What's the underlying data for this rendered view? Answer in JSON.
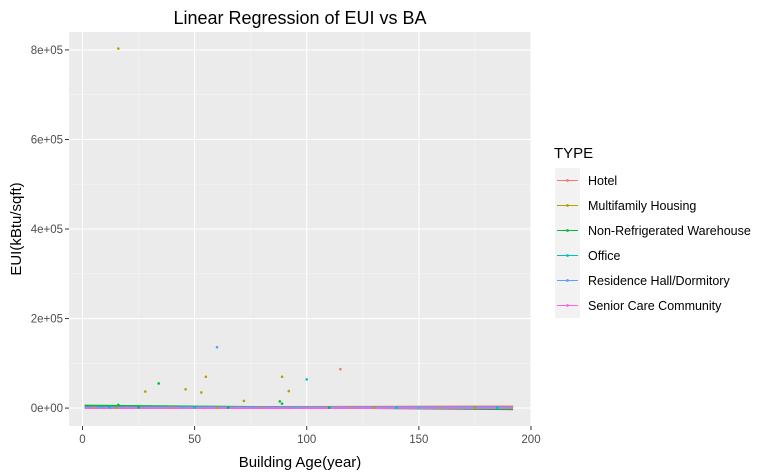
{
  "chart_data": {
    "type": "scatter",
    "title": "Linear Regression of EUI vs BA",
    "xlabel": "Building Age(year)",
    "ylabel": "EUI(kBtu/sqft)",
    "xlim": [
      -6,
      200
    ],
    "ylim": [
      -40000,
      840000
    ],
    "x_ticks": [
      0,
      50,
      100,
      150,
      200
    ],
    "x_tick_labels": [
      "0",
      "50",
      "100",
      "150",
      "200"
    ],
    "y_ticks": [
      0,
      200000,
      400000,
      600000,
      800000
    ],
    "y_tick_labels": [
      "0e+00",
      "2e+05",
      "4e+05",
      "6e+05",
      "8e+05"
    ],
    "grid": true,
    "legend_title": "TYPE",
    "legend_position": "right",
    "series": [
      {
        "name": "Hotel",
        "color": "#F8766D",
        "points": [
          [
            115,
            87000
          ],
          [
            5,
            1500
          ],
          [
            40,
            800
          ],
          [
            80,
            1200
          ],
          [
            120,
            900
          ],
          [
            160,
            1300
          ],
          [
            190,
            1000
          ]
        ],
        "line": [
          [
            1,
            1200
          ],
          [
            192,
            3500
          ]
        ]
      },
      {
        "name": "Multifamily Housing",
        "color": "#B79F00",
        "points": [
          [
            16,
            803000
          ],
          [
            28,
            37000
          ],
          [
            46,
            42000
          ],
          [
            53,
            35000
          ],
          [
            55,
            70000
          ],
          [
            72,
            16000
          ],
          [
            89,
            70000
          ],
          [
            92,
            38000
          ],
          [
            15,
            1000
          ],
          [
            60,
            900
          ],
          [
            130,
            1100
          ],
          [
            175,
            1200
          ]
        ],
        "line": [
          [
            1,
            2000
          ],
          [
            192,
            3000
          ]
        ]
      },
      {
        "name": "Non-Refrigerated Warehouse",
        "color": "#00BA38",
        "points": [
          [
            34,
            55000
          ],
          [
            88,
            15000
          ],
          [
            89,
            10000
          ],
          [
            16,
            7000
          ],
          [
            25,
            1500
          ],
          [
            65,
            1200
          ],
          [
            110,
            900
          ]
        ],
        "line": [
          [
            1,
            5500
          ],
          [
            192,
            -2500
          ]
        ]
      },
      {
        "name": "Office",
        "color": "#00BFC4",
        "points": [
          [
            100,
            64000
          ],
          [
            12,
            1500
          ],
          [
            50,
            1200
          ],
          [
            140,
            900
          ],
          [
            185,
            1100
          ]
        ],
        "line": [
          [
            1,
            2500
          ],
          [
            192,
            1500
          ]
        ]
      },
      {
        "name": "Residence Hall/Dormitory",
        "color": "#619CFF",
        "points": [
          [
            60,
            136000
          ],
          [
            8,
            1200
          ],
          [
            45,
            1000
          ],
          [
            95,
            1100
          ],
          [
            150,
            800
          ]
        ],
        "line": [
          [
            1,
            300
          ],
          [
            192,
            2500
          ]
        ]
      },
      {
        "name": "Senior Care Community",
        "color": "#F564E3",
        "points": [
          [
            20,
            1300
          ],
          [
            70,
            900
          ],
          [
            115,
            1000
          ],
          [
            165,
            1200
          ]
        ],
        "line": [
          [
            1,
            100
          ],
          [
            192,
            200
          ]
        ]
      }
    ]
  }
}
